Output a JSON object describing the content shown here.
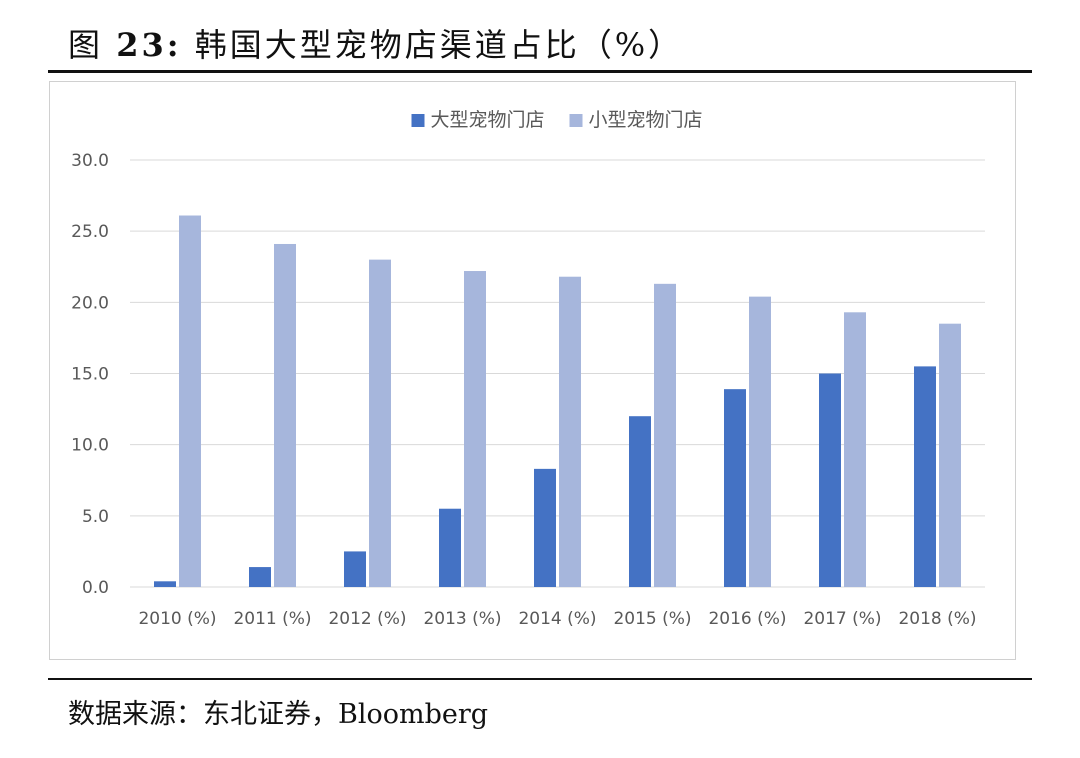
{
  "title": {
    "prefix": "图",
    "number": "23:",
    "text": "韩国大型宠物店渠道占比（%）"
  },
  "source": "数据来源：东北证券，Bloomberg",
  "chart_data": {
    "type": "bar",
    "categories": [
      "2010 (%)",
      "2011 (%)",
      "2012 (%)",
      "2013 (%)",
      "2014 (%)",
      "2015 (%)",
      "2016 (%)",
      "2017 (%)",
      "2018 (%)"
    ],
    "series": [
      {
        "name": "大型宠物门店",
        "color": "#4472c4",
        "values": [
          0.4,
          1.4,
          2.5,
          5.5,
          8.3,
          12.0,
          13.9,
          15.0,
          15.5
        ]
      },
      {
        "name": "小型宠物门店",
        "color": "#a6b6dc",
        "values": [
          26.1,
          24.1,
          23.0,
          22.2,
          21.8,
          21.3,
          20.4,
          19.3,
          18.5
        ]
      }
    ],
    "y_ticks": [
      "0.0",
      "5.0",
      "10.0",
      "15.0",
      "20.0",
      "25.0",
      "30.0"
    ],
    "ylim": [
      0,
      30
    ],
    "grid": true,
    "legend_position": "top-center",
    "xlabel": "",
    "ylabel": ""
  }
}
